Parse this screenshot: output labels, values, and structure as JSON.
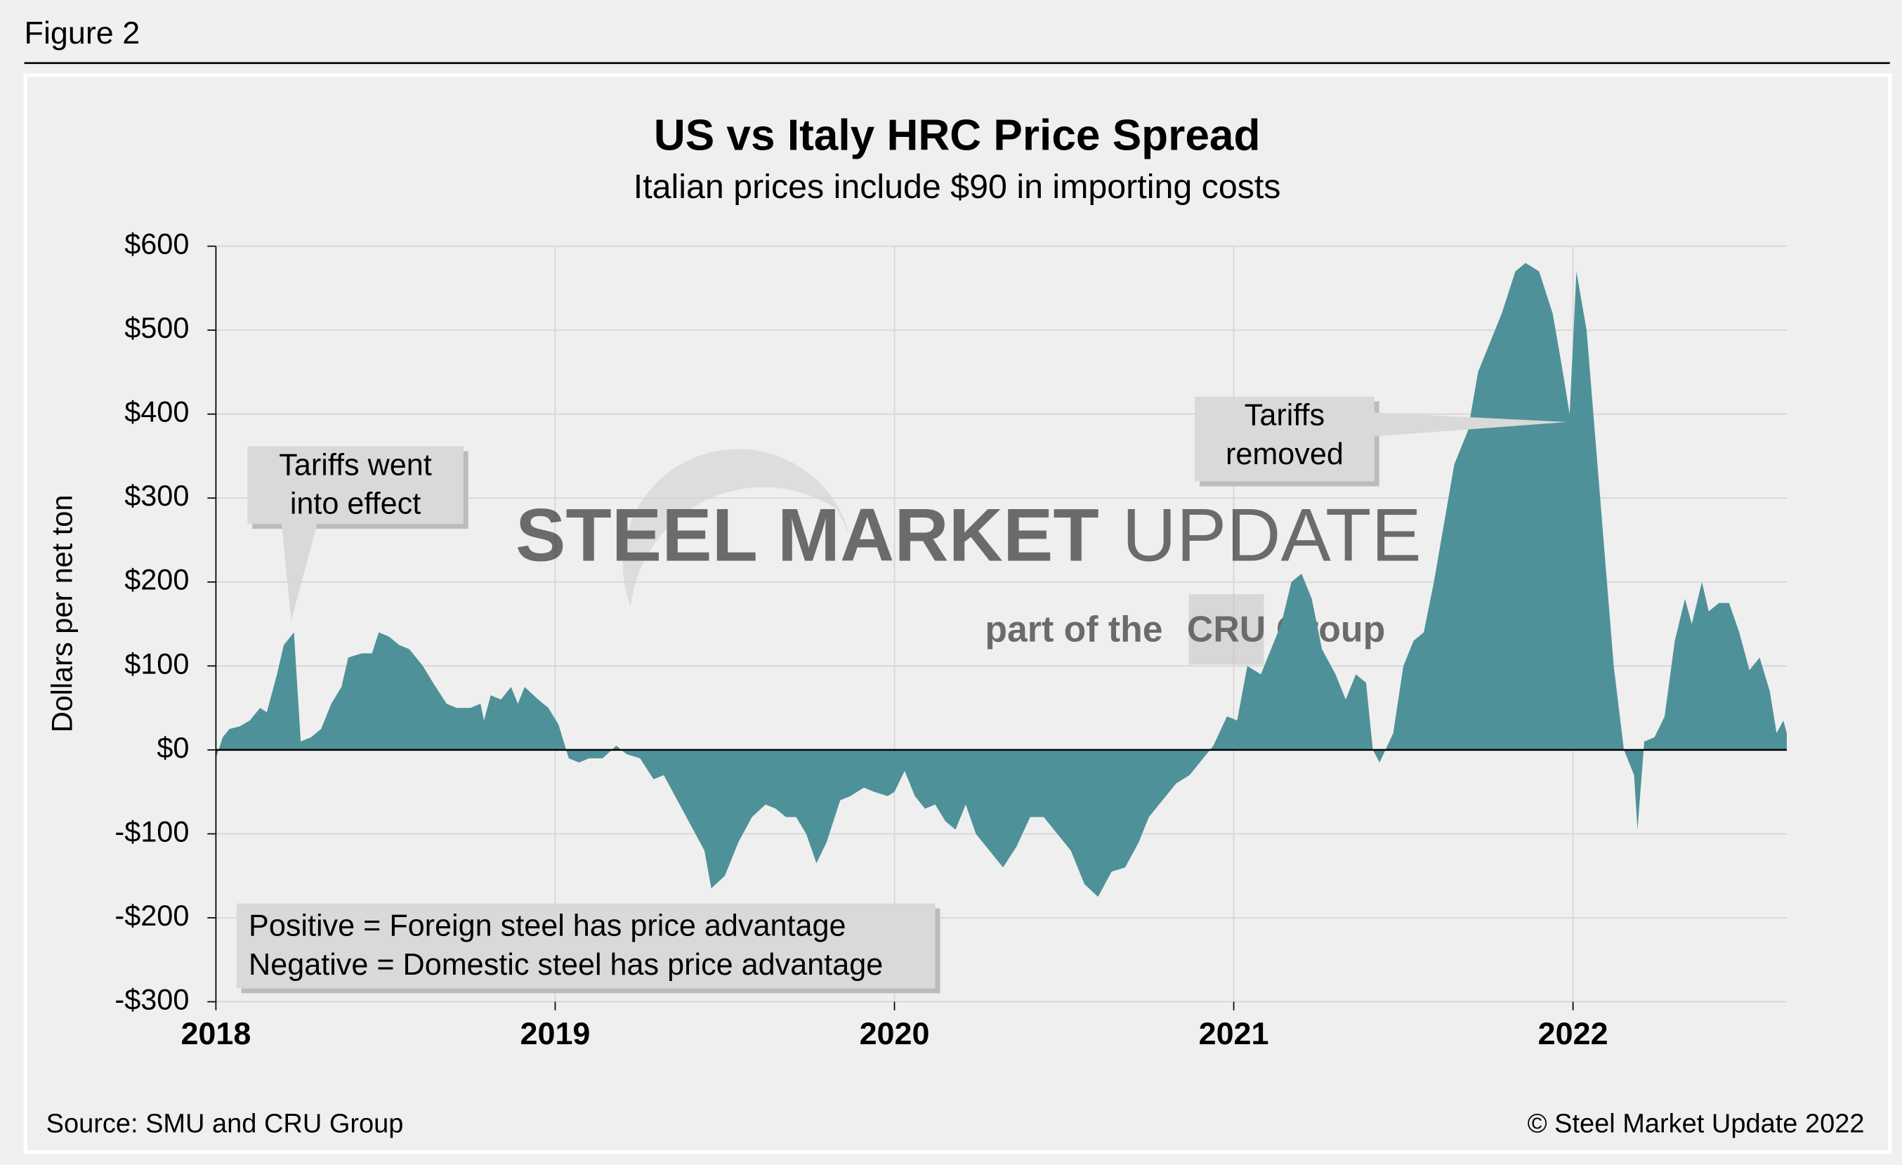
{
  "figure_label": "Figure 2",
  "chart_data": {
    "type": "area",
    "title": "US vs Italy HRC Price Spread",
    "subtitle": "Italian prices include $90 in importing costs",
    "ylabel": "Dollars per net ton",
    "source": "Source: SMU and CRU Group",
    "copyright": "© Steel Market Update 2022",
    "watermark": [
      "STEEL MARKET",
      "UPDATE",
      "part of the",
      "CRU",
      "Group"
    ],
    "annotations": [
      {
        "lines": [
          "Tariffs went",
          "into effect"
        ]
      },
      {
        "lines": [
          "Tariffs",
          "removed"
        ]
      }
    ],
    "note": [
      "Positive = Foreign steel has price advantage",
      "Negative = Domestic steel has price advantage"
    ],
    "color": "#4f9199",
    "grid": true,
    "xlim": [
      2018,
      2022.63
    ],
    "xticks": [
      2018,
      2019,
      2020,
      2021,
      2022
    ],
    "ylim": [
      -300,
      600
    ],
    "yticks": [
      {
        "value": -300,
        "label": "-$300"
      },
      {
        "value": -200,
        "label": "-$200"
      },
      {
        "value": -100,
        "label": "-$100"
      },
      {
        "value": 0,
        "label": "$0"
      },
      {
        "value": 100,
        "label": "$100"
      },
      {
        "value": 200,
        "label": "$200"
      },
      {
        "value": 300,
        "label": "$300"
      },
      {
        "value": 400,
        "label": "$400"
      },
      {
        "value": 500,
        "label": "$500"
      },
      {
        "value": 600,
        "label": "$600"
      }
    ],
    "x": [
      2018.0,
      2018.02,
      2018.04,
      2018.07,
      2018.1,
      2018.13,
      2018.15,
      2018.18,
      2018.2,
      2018.23,
      2018.25,
      2018.28,
      2018.31,
      2018.34,
      2018.37,
      2018.39,
      2018.43,
      2018.46,
      2018.48,
      2018.51,
      2018.54,
      2018.57,
      2018.61,
      2018.64,
      2018.68,
      2018.71,
      2018.75,
      2018.78,
      2018.79,
      2018.81,
      2018.84,
      2018.87,
      2018.89,
      2018.91,
      2018.95,
      2018.98,
      2019.01,
      2019.04,
      2019.07,
      2019.1,
      2019.14,
      2019.18,
      2019.21,
      2019.25,
      2019.29,
      2019.32,
      2019.36,
      2019.4,
      2019.44,
      2019.46,
      2019.5,
      2019.54,
      2019.58,
      2019.62,
      2019.65,
      2019.68,
      2019.71,
      2019.74,
      2019.77,
      2019.8,
      2019.84,
      2019.87,
      2019.91,
      2019.94,
      2019.98,
      2020.0,
      2020.03,
      2020.06,
      2020.09,
      2020.12,
      2020.15,
      2020.18,
      2020.21,
      2020.24,
      2020.28,
      2020.32,
      2020.36,
      2020.4,
      2020.44,
      2020.48,
      2020.52,
      2020.56,
      2020.6,
      2020.64,
      2020.68,
      2020.72,
      2020.75,
      2020.79,
      2020.83,
      2020.87,
      2020.91,
      2020.94,
      2020.98,
      2021.01,
      2021.04,
      2021.08,
      2021.11,
      2021.14,
      2021.17,
      2021.2,
      2021.23,
      2021.26,
      2021.3,
      2021.33,
      2021.36,
      2021.39,
      2021.41,
      2021.43,
      2021.47,
      2021.5,
      2021.53,
      2021.56,
      2021.59,
      2021.62,
      2021.65,
      2021.69,
      2021.72,
      2021.76,
      2021.79,
      2021.83,
      2021.86,
      2021.9,
      2021.94,
      2021.97,
      2021.99,
      2022.01,
      2022.04,
      2022.08,
      2022.12,
      2022.15,
      2022.18,
      2022.19,
      2022.21,
      2022.24,
      2022.27,
      2022.3,
      2022.33,
      2022.35,
      2022.38,
      2022.4,
      2022.43,
      2022.46,
      2022.49,
      2022.52,
      2022.55,
      2022.58,
      2022.6,
      2022.62,
      2022.63
    ],
    "values": [
      -10,
      15,
      25,
      28,
      35,
      50,
      45,
      90,
      125,
      140,
      10,
      15,
      25,
      55,
      75,
      110,
      115,
      115,
      140,
      135,
      125,
      120,
      100,
      80,
      55,
      50,
      50,
      55,
      35,
      65,
      60,
      75,
      55,
      75,
      60,
      50,
      30,
      -10,
      -15,
      -10,
      -10,
      5,
      -5,
      -10,
      -35,
      -30,
      -60,
      -90,
      -120,
      -165,
      -150,
      -110,
      -80,
      -65,
      -70,
      -80,
      -80,
      -100,
      -135,
      -110,
      -60,
      -55,
      -45,
      -50,
      -55,
      -50,
      -25,
      -55,
      -70,
      -65,
      -85,
      -95,
      -65,
      -100,
      -120,
      -140,
      -115,
      -80,
      -80,
      -100,
      -120,
      -160,
      -175,
      -145,
      -140,
      -110,
      -80,
      -60,
      -40,
      -30,
      -10,
      5,
      40,
      35,
      100,
      90,
      120,
      150,
      200,
      210,
      180,
      120,
      90,
      60,
      90,
      80,
      0,
      -15,
      20,
      100,
      130,
      140,
      200,
      270,
      340,
      380,
      450,
      490,
      520,
      570,
      580,
      570,
      520,
      450,
      400,
      570,
      500,
      300,
      100,
      0,
      -30,
      -95,
      10,
      15,
      40,
      130,
      180,
      150,
      200,
      165,
      175,
      175,
      140,
      95,
      110,
      70,
      20,
      35,
      20
    ]
  }
}
